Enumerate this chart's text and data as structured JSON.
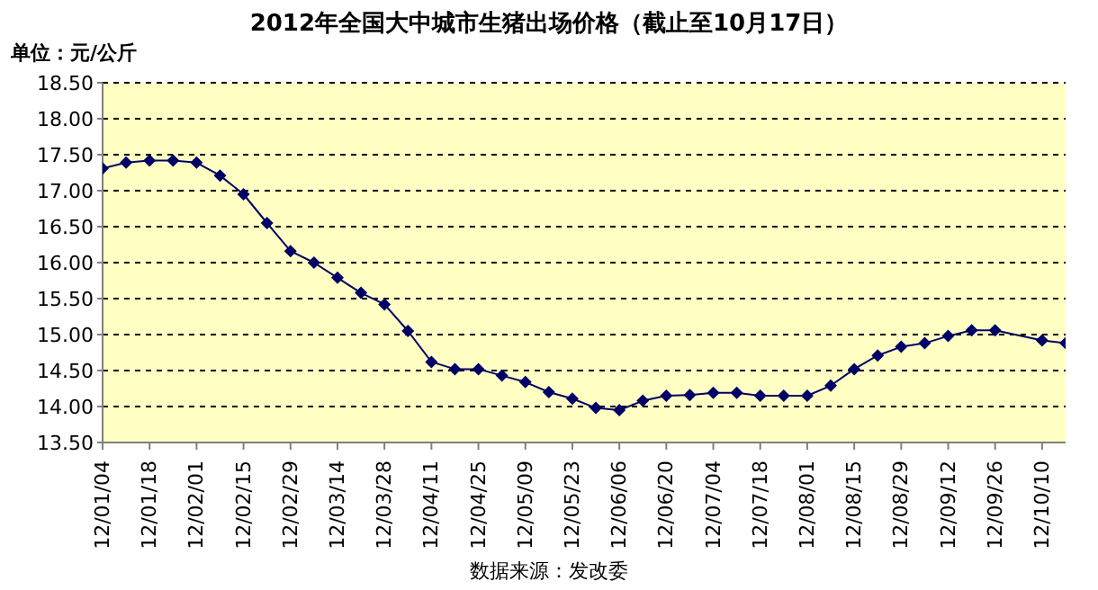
{
  "chart_data": {
    "type": "line",
    "title": "2012年全国大中城市生猪出场价格（截止至10月17日）",
    "ylabel": "单位：元/公斤",
    "annotations": [
      "数据来源：发改委"
    ],
    "x": [
      "2012-01-04",
      "2012-01-11",
      "2012-01-18",
      "2012-01-25",
      "2012-02-01",
      "2012-02-08",
      "2012-02-15",
      "2012-02-22",
      "2012-02-29",
      "2012-03-07",
      "2012-03-14",
      "2012-03-21",
      "2012-03-28",
      "2012-04-04",
      "2012-04-11",
      "2012-04-18",
      "2012-04-25",
      "2012-05-02",
      "2012-05-09",
      "2012-05-16",
      "2012-05-23",
      "2012-05-30",
      "2012-06-06",
      "2012-06-13",
      "2012-06-20",
      "2012-06-27",
      "2012-07-04",
      "2012-07-11",
      "2012-07-18",
      "2012-07-25",
      "2012-08-01",
      "2012-08-08",
      "2012-08-15",
      "2012-08-22",
      "2012-08-29",
      "2012-09-05",
      "2012-09-12",
      "2012-09-19",
      "2012-09-26",
      "2012-10-10",
      "2012-10-17"
    ],
    "series": [
      {
        "color": "#000066",
        "values": [
          17.31,
          17.39,
          17.42,
          17.42,
          17.39,
          17.21,
          16.95,
          16.55,
          16.16,
          16.0,
          15.79,
          15.58,
          15.42,
          15.05,
          14.62,
          14.52,
          14.52,
          14.43,
          14.34,
          14.2,
          14.11,
          13.98,
          13.95,
          14.08,
          14.15,
          14.16,
          14.19,
          14.19,
          14.15,
          14.15,
          14.15,
          14.29,
          14.52,
          14.71,
          14.83,
          14.88,
          14.98,
          15.06,
          15.06,
          14.92,
          14.88
        ]
      }
    ],
    "xlim": [
      "2012-01-04",
      "2012-10-17"
    ],
    "xticks": [
      {
        "value": "2012-01-04",
        "label": "12/01/04"
      },
      {
        "value": "2012-01-18",
        "label": "12/01/18"
      },
      {
        "value": "2012-02-01",
        "label": "12/02/01"
      },
      {
        "value": "2012-02-15",
        "label": "12/02/15"
      },
      {
        "value": "2012-02-29",
        "label": "12/02/29"
      },
      {
        "value": "2012-03-14",
        "label": "12/03/14"
      },
      {
        "value": "2012-03-28",
        "label": "12/03/28"
      },
      {
        "value": "2012-04-11",
        "label": "12/04/11"
      },
      {
        "value": "2012-04-25",
        "label": "12/04/25"
      },
      {
        "value": "2012-05-09",
        "label": "12/05/09"
      },
      {
        "value": "2012-05-23",
        "label": "12/05/23"
      },
      {
        "value": "2012-06-06",
        "label": "12/06/06"
      },
      {
        "value": "2012-06-20",
        "label": "12/06/20"
      },
      {
        "value": "2012-07-04",
        "label": "12/07/04"
      },
      {
        "value": "2012-07-18",
        "label": "12/07/18"
      },
      {
        "value": "2012-08-01",
        "label": "12/08/01"
      },
      {
        "value": "2012-08-15",
        "label": "12/08/15"
      },
      {
        "value": "2012-08-29",
        "label": "12/08/29"
      },
      {
        "value": "2012-09-12",
        "label": "12/09/12"
      },
      {
        "value": "2012-09-26",
        "label": "12/09/26"
      },
      {
        "value": "2012-10-10",
        "label": "12/10/10"
      }
    ],
    "ylim": [
      13.5,
      18.5
    ],
    "yticks": [
      {
        "value": 13.5,
        "label": "13.50"
      },
      {
        "value": 14,
        "label": "14.00"
      },
      {
        "value": 14.5,
        "label": "14.50"
      },
      {
        "value": 15,
        "label": "15.00"
      },
      {
        "value": 15.5,
        "label": "15.50"
      },
      {
        "value": 16,
        "label": "16.00"
      },
      {
        "value": 16.5,
        "label": "16.50"
      },
      {
        "value": 17,
        "label": "17.00"
      },
      {
        "value": 17.5,
        "label": "17.50"
      },
      {
        "value": 18,
        "label": "18.00"
      },
      {
        "value": 18.5,
        "label": "18.50"
      }
    ],
    "grid": "y",
    "legend": false,
    "marker": "diamond",
    "line_style": "solid"
  }
}
